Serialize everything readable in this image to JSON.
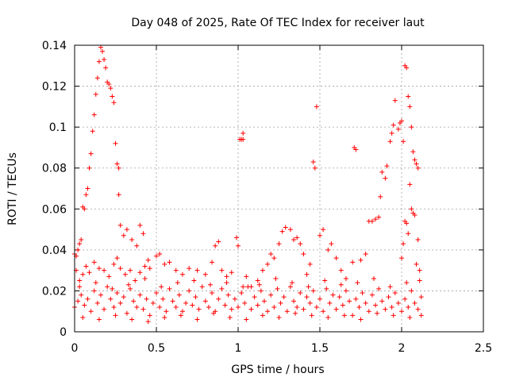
{
  "chart_data": {
    "type": "scatter",
    "title": "Day 048 of 2025, Rate Of TEC Index for receiver laut",
    "xlabel": "GPS time / hours",
    "ylabel": "ROTI / TECUs",
    "xlim": [
      0,
      2.5
    ],
    "ylim": [
      0,
      0.14
    ],
    "x_ticks": [
      "0",
      "0.5",
      "1",
      "1.5",
      "2",
      "2.5"
    ],
    "y_ticks": [
      "0",
      "0.02",
      "0.04",
      "0.06",
      "0.08",
      "0.1",
      "0.12",
      "0.14"
    ],
    "grid": true,
    "marker": "+",
    "colors": {
      "marker": "#ff0000",
      "grid": "#a0a0a0",
      "axis": "#000000"
    },
    "series": [
      {
        "name": "ROTI",
        "points": [
          [
            0.0,
            0.038
          ],
          [
            0.01,
            0.037
          ],
          [
            0.02,
            0.04
          ],
          [
            0.03,
            0.043
          ],
          [
            0.04,
            0.045
          ],
          [
            0.05,
            0.061
          ],
          [
            0.06,
            0.06
          ],
          [
            0.07,
            0.067
          ],
          [
            0.08,
            0.07
          ],
          [
            0.09,
            0.08
          ],
          [
            0.1,
            0.087
          ],
          [
            0.11,
            0.098
          ],
          [
            0.12,
            0.106
          ],
          [
            0.13,
            0.116
          ],
          [
            0.14,
            0.124
          ],
          [
            0.15,
            0.132
          ],
          [
            0.16,
            0.139
          ],
          [
            0.17,
            0.137
          ],
          [
            0.18,
            0.133
          ],
          [
            0.19,
            0.129
          ],
          [
            0.2,
            0.122
          ],
          [
            0.21,
            0.121
          ],
          [
            0.22,
            0.119
          ],
          [
            0.23,
            0.115
          ],
          [
            0.24,
            0.112
          ],
          [
            0.25,
            0.092
          ],
          [
            0.26,
            0.082
          ],
          [
            0.27,
            0.08
          ],
          [
            0.27,
            0.067
          ],
          [
            0.28,
            0.052
          ],
          [
            0.3,
            0.047
          ],
          [
            0.32,
            0.05
          ],
          [
            0.35,
            0.045
          ],
          [
            0.38,
            0.042
          ],
          [
            0.4,
            0.052
          ],
          [
            0.42,
            0.048
          ],
          [
            0.45,
            0.035
          ],
          [
            0.01,
            0.03
          ],
          [
            0.03,
            0.025
          ],
          [
            0.05,
            0.028
          ],
          [
            0.07,
            0.032
          ],
          [
            0.09,
            0.029
          ],
          [
            0.12,
            0.034
          ],
          [
            0.15,
            0.031
          ],
          [
            0.18,
            0.03
          ],
          [
            0.21,
            0.027
          ],
          [
            0.24,
            0.033
          ],
          [
            0.26,
            0.036
          ],
          [
            0.28,
            0.031
          ],
          [
            0.31,
            0.028
          ],
          [
            0.34,
            0.03
          ],
          [
            0.37,
            0.025
          ],
          [
            0.4,
            0.029
          ],
          [
            0.43,
            0.032
          ],
          [
            0.46,
            0.031
          ],
          [
            0.5,
            0.037
          ],
          [
            0.52,
            0.038
          ],
          [
            0.55,
            0.033
          ],
          [
            0.58,
            0.034
          ],
          [
            0.62,
            0.03
          ],
          [
            0.66,
            0.028
          ],
          [
            0.7,
            0.031
          ],
          [
            0.75,
            0.03
          ],
          [
            0.8,
            0.028
          ],
          [
            0.84,
            0.034
          ],
          [
            0.86,
            0.042
          ],
          [
            0.88,
            0.044
          ],
          [
            0.9,
            0.03
          ],
          [
            0.93,
            0.027
          ],
          [
            0.96,
            0.029
          ],
          [
            0.99,
            0.046
          ],
          [
            1.0,
            0.042
          ],
          [
            1.01,
            0.094
          ],
          [
            1.02,
            0.094
          ],
          [
            1.03,
            0.097
          ],
          [
            1.03,
            0.094
          ],
          [
            1.05,
            0.027
          ],
          [
            1.08,
            0.022
          ],
          [
            1.12,
            0.025
          ],
          [
            1.15,
            0.03
          ],
          [
            1.18,
            0.033
          ],
          [
            1.2,
            0.038
          ],
          [
            1.22,
            0.036
          ],
          [
            1.25,
            0.043
          ],
          [
            1.27,
            0.049
          ],
          [
            1.29,
            0.051
          ],
          [
            1.32,
            0.05
          ],
          [
            1.34,
            0.045
          ],
          [
            1.36,
            0.046
          ],
          [
            1.38,
            0.043
          ],
          [
            1.4,
            0.038
          ],
          [
            1.42,
            0.028
          ],
          [
            1.44,
            0.033
          ],
          [
            1.46,
            0.083
          ],
          [
            1.47,
            0.08
          ],
          [
            1.48,
            0.11
          ],
          [
            1.5,
            0.047
          ],
          [
            1.52,
            0.05
          ],
          [
            1.55,
            0.04
          ],
          [
            1.57,
            0.043
          ],
          [
            1.6,
            0.036
          ],
          [
            1.63,
            0.03
          ],
          [
            1.66,
            0.026
          ],
          [
            1.7,
            0.034
          ],
          [
            1.71,
            0.09
          ],
          [
            1.72,
            0.089
          ],
          [
            1.75,
            0.035
          ],
          [
            1.78,
            0.038
          ],
          [
            1.8,
            0.054
          ],
          [
            1.82,
            0.054
          ],
          [
            1.84,
            0.055
          ],
          [
            1.86,
            0.056
          ],
          [
            1.87,
            0.066
          ],
          [
            1.88,
            0.078
          ],
          [
            1.9,
            0.075
          ],
          [
            1.91,
            0.081
          ],
          [
            1.93,
            0.093
          ],
          [
            1.94,
            0.097
          ],
          [
            1.95,
            0.101
          ],
          [
            1.96,
            0.113
          ],
          [
            1.98,
            0.099
          ],
          [
            1.99,
            0.102
          ],
          [
            2.0,
            0.103
          ],
          [
            2.01,
            0.093
          ],
          [
            2.02,
            0.13
          ],
          [
            2.03,
            0.129
          ],
          [
            2.04,
            0.115
          ],
          [
            2.05,
            0.11
          ],
          [
            2.06,
            0.1
          ],
          [
            2.07,
            0.088
          ],
          [
            2.08,
            0.084
          ],
          [
            2.09,
            0.082
          ],
          [
            2.1,
            0.08
          ],
          [
            2.05,
            0.072
          ],
          [
            2.06,
            0.06
          ],
          [
            2.07,
            0.058
          ],
          [
            2.08,
            0.057
          ],
          [
            2.1,
            0.045
          ],
          [
            2.02,
            0.054
          ],
          [
            2.03,
            0.053
          ],
          [
            2.04,
            0.048
          ],
          [
            2.01,
            0.043
          ],
          [
            2.0,
            0.036
          ],
          [
            2.09,
            0.033
          ],
          [
            2.11,
            0.03
          ],
          [
            0.0,
            0.012
          ],
          [
            0.02,
            0.015
          ],
          [
            0.04,
            0.018
          ],
          [
            0.06,
            0.013
          ],
          [
            0.08,
            0.016
          ],
          [
            0.1,
            0.01
          ],
          [
            0.12,
            0.02
          ],
          [
            0.14,
            0.014
          ],
          [
            0.16,
            0.018
          ],
          [
            0.18,
            0.011
          ],
          [
            0.2,
            0.022
          ],
          [
            0.22,
            0.016
          ],
          [
            0.24,
            0.012
          ],
          [
            0.26,
            0.019
          ],
          [
            0.28,
            0.014
          ],
          [
            0.3,
            0.017
          ],
          [
            0.32,
            0.009
          ],
          [
            0.34,
            0.021
          ],
          [
            0.36,
            0.015
          ],
          [
            0.38,
            0.012
          ],
          [
            0.4,
            0.018
          ],
          [
            0.42,
            0.011
          ],
          [
            0.44,
            0.016
          ],
          [
            0.46,
            0.008
          ],
          [
            0.48,
            0.014
          ],
          [
            0.5,
            0.019
          ],
          [
            0.52,
            0.012
          ],
          [
            0.54,
            0.016
          ],
          [
            0.56,
            0.01
          ],
          [
            0.58,
            0.021
          ],
          [
            0.6,
            0.015
          ],
          [
            0.62,
            0.012
          ],
          [
            0.64,
            0.018
          ],
          [
            0.66,
            0.01
          ],
          [
            0.68,
            0.014
          ],
          [
            0.7,
            0.02
          ],
          [
            0.72,
            0.013
          ],
          [
            0.74,
            0.017
          ],
          [
            0.76,
            0.011
          ],
          [
            0.78,
            0.022
          ],
          [
            0.8,
            0.015
          ],
          [
            0.82,
            0.012
          ],
          [
            0.84,
            0.019
          ],
          [
            0.86,
            0.01
          ],
          [
            0.88,
            0.016
          ],
          [
            0.9,
            0.021
          ],
          [
            0.92,
            0.013
          ],
          [
            0.94,
            0.018
          ],
          [
            0.96,
            0.011
          ],
          [
            0.98,
            0.016
          ],
          [
            1.0,
            0.012
          ],
          [
            1.02,
            0.019
          ],
          [
            1.04,
            0.014
          ],
          [
            1.06,
            0.022
          ],
          [
            1.08,
            0.011
          ],
          [
            1.1,
            0.017
          ],
          [
            1.12,
            0.013
          ],
          [
            1.14,
            0.02
          ],
          [
            1.16,
            0.015
          ],
          [
            1.18,
            0.01
          ],
          [
            1.2,
            0.018
          ],
          [
            1.22,
            0.012
          ],
          [
            1.24,
            0.021
          ],
          [
            1.26,
            0.014
          ],
          [
            1.28,
            0.017
          ],
          [
            1.3,
            0.01
          ],
          [
            1.32,
            0.022
          ],
          [
            1.34,
            0.015
          ],
          [
            1.36,
            0.012
          ],
          [
            1.38,
            0.019
          ],
          [
            1.4,
            0.011
          ],
          [
            1.42,
            0.017
          ],
          [
            1.44,
            0.014
          ],
          [
            1.46,
            0.02
          ],
          [
            1.48,
            0.012
          ],
          [
            1.5,
            0.016
          ],
          [
            1.52,
            0.01
          ],
          [
            1.54,
            0.021
          ],
          [
            1.56,
            0.014
          ],
          [
            1.58,
            0.018
          ],
          [
            1.6,
            0.011
          ],
          [
            1.62,
            0.017
          ],
          [
            1.64,
            0.013
          ],
          [
            1.66,
            0.02
          ],
          [
            1.68,
            0.015
          ],
          [
            1.7,
            0.008
          ],
          [
            1.72,
            0.016
          ],
          [
            1.74,
            0.012
          ],
          [
            1.76,
            0.019
          ],
          [
            1.78,
            0.014
          ],
          [
            1.8,
            0.01
          ],
          [
            1.82,
            0.018
          ],
          [
            1.84,
            0.013
          ],
          [
            1.86,
            0.021
          ],
          [
            1.88,
            0.015
          ],
          [
            1.9,
            0.011
          ],
          [
            1.92,
            0.017
          ],
          [
            1.94,
            0.012
          ],
          [
            1.96,
            0.019
          ],
          [
            1.98,
            0.014
          ],
          [
            2.0,
            0.01
          ],
          [
            2.02,
            0.016
          ],
          [
            2.04,
            0.012
          ],
          [
            2.06,
            0.02
          ],
          [
            2.08,
            0.014
          ],
          [
            2.1,
            0.011
          ],
          [
            2.12,
            0.017
          ],
          [
            0.05,
            0.007
          ],
          [
            0.15,
            0.006
          ],
          [
            0.25,
            0.008
          ],
          [
            0.35,
            0.006
          ],
          [
            0.45,
            0.005
          ],
          [
            0.55,
            0.007
          ],
          [
            0.65,
            0.008
          ],
          [
            0.75,
            0.006
          ],
          [
            0.85,
            0.009
          ],
          [
            0.95,
            0.007
          ],
          [
            1.05,
            0.006
          ],
          [
            1.15,
            0.008
          ],
          [
            1.25,
            0.007
          ],
          [
            1.35,
            0.009
          ],
          [
            1.45,
            0.008
          ],
          [
            1.55,
            0.007
          ],
          [
            1.65,
            0.008
          ],
          [
            1.75,
            0.006
          ],
          [
            1.85,
            0.009
          ],
          [
            1.95,
            0.008
          ],
          [
            2.05,
            0.007
          ],
          [
            2.12,
            0.008
          ],
          [
            0.03,
            0.022
          ],
          [
            0.13,
            0.024
          ],
          [
            0.23,
            0.021
          ],
          [
            0.33,
            0.023
          ],
          [
            0.43,
            0.026
          ],
          [
            0.53,
            0.022
          ],
          [
            0.63,
            0.024
          ],
          [
            0.73,
            0.025
          ],
          [
            0.83,
            0.023
          ],
          [
            0.93,
            0.024
          ],
          [
            1.03,
            0.022
          ],
          [
            1.13,
            0.023
          ],
          [
            1.23,
            0.026
          ],
          [
            1.33,
            0.024
          ],
          [
            1.43,
            0.022
          ],
          [
            1.53,
            0.025
          ],
          [
            1.63,
            0.023
          ],
          [
            1.73,
            0.024
          ],
          [
            1.83,
            0.026
          ],
          [
            1.93,
            0.022
          ],
          [
            2.03,
            0.024
          ],
          [
            2.11,
            0.025
          ]
        ]
      }
    ]
  }
}
